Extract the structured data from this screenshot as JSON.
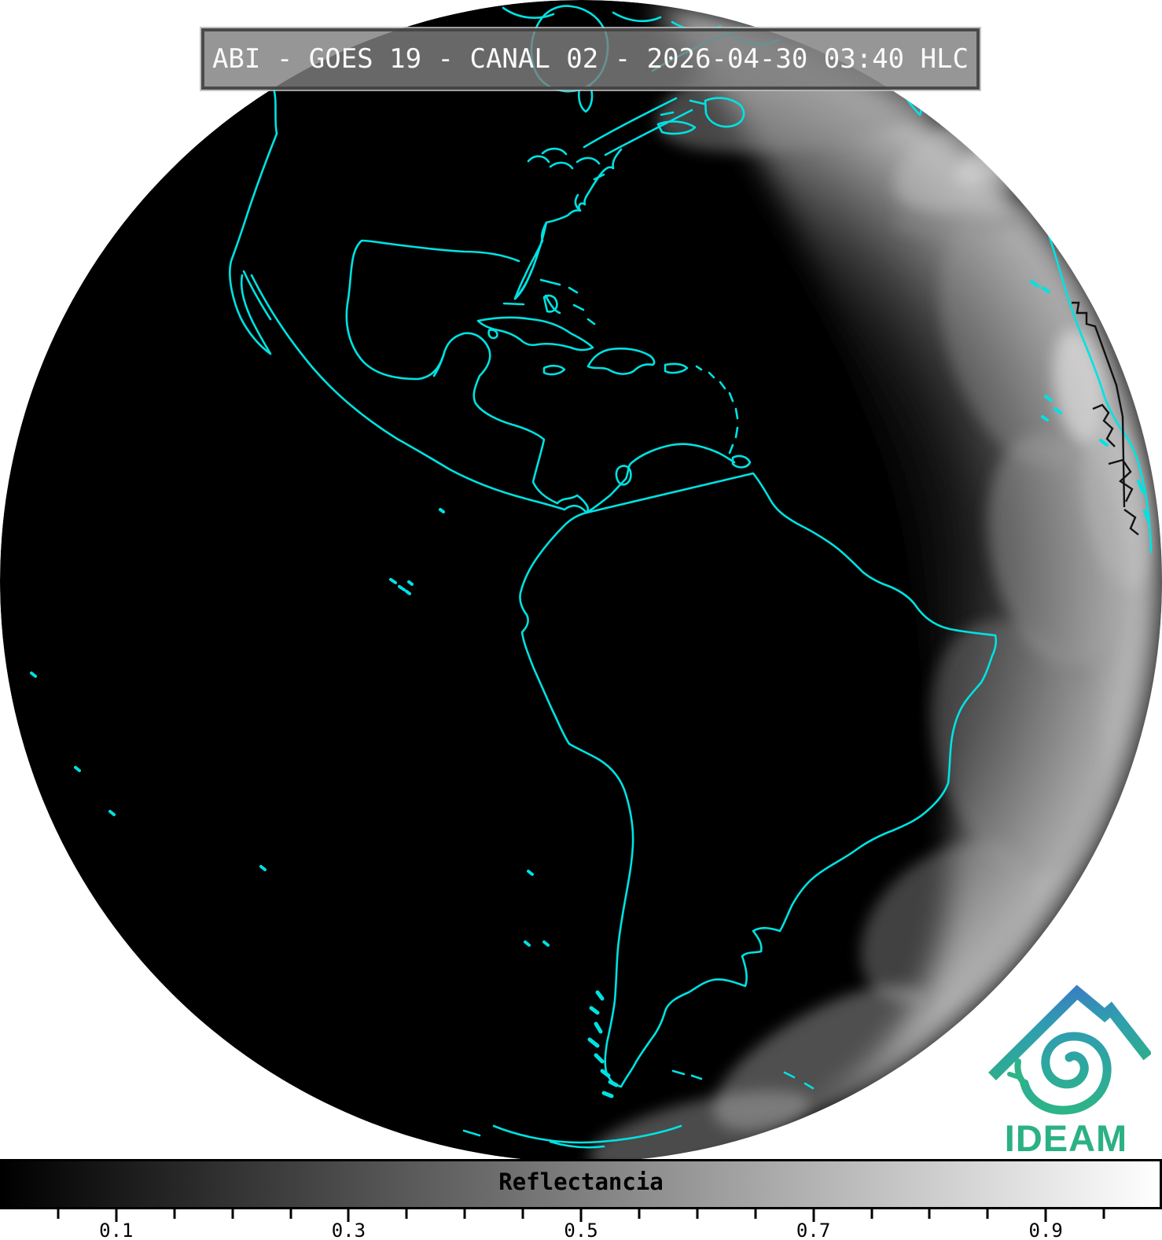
{
  "header": {
    "title": "ABI - GOES 19 - CANAL 02 - 2026-04-30 03:40 HLC",
    "instrument": "ABI",
    "satellite": "GOES 19",
    "channel": "CANAL 02",
    "datetime": "2026-04-30 03:40",
    "timezone": "HLC"
  },
  "colorbar": {
    "label": "Reflectancia",
    "tick_labels": [
      "0.1",
      "0.3",
      "0.5",
      "0.7",
      "0.9"
    ],
    "tick_label_values": [
      0.1,
      0.3,
      0.5,
      0.7,
      0.9
    ],
    "minor_tick_step": 0.05,
    "range": [
      0,
      1
    ],
    "gradient_start": "#000000",
    "gradient_end": "#ffffff"
  },
  "logo": {
    "wordmark": "IDEAM",
    "wordmark_color": "#2bb183",
    "mountain_icon": "mountain-roof",
    "spiral_icon": "hurricane-spiral",
    "mountain_color_top": "#3b79c4",
    "mountain_color_bottom": "#2eae8c"
  },
  "colors": {
    "background": "#ffffff",
    "night_side": "#000000",
    "coastline": "#00e2e2",
    "country_border_overlay": "#000000",
    "titlebar_text": "#fafafa"
  }
}
